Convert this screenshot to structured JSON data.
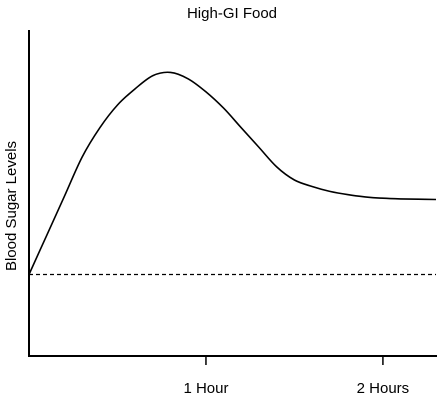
{
  "chart_data": {
    "type": "line",
    "title": "High-GI Food",
    "xlabel": "",
    "ylabel": "Blood Sugar Levels",
    "x_ticks": [
      {
        "x": 1,
        "label": "1 Hour"
      },
      {
        "x": 2,
        "label": "2 Hours"
      }
    ],
    "xlim": [
      0,
      2.3
    ],
    "ylim": [
      0,
      100
    ],
    "grid": false,
    "baseline": {
      "y": 25,
      "style": "dashed"
    },
    "series": [
      {
        "x": [
          0,
          0.1,
          0.2,
          0.3,
          0.4,
          0.5,
          0.6,
          0.7,
          0.8,
          0.9,
          1.0,
          1.1,
          1.2,
          1.3,
          1.4,
          1.5,
          1.6,
          1.7,
          1.8,
          1.9,
          2.0,
          2.1,
          2.2,
          2.3
        ],
        "values": [
          25,
          37,
          49,
          61,
          70,
          77,
          82,
          86,
          87,
          85,
          81,
          76,
          70,
          64,
          58,
          54,
          52,
          50.5,
          49.5,
          48.8,
          48.4,
          48.2,
          48.1,
          48
        ]
      }
    ]
  }
}
